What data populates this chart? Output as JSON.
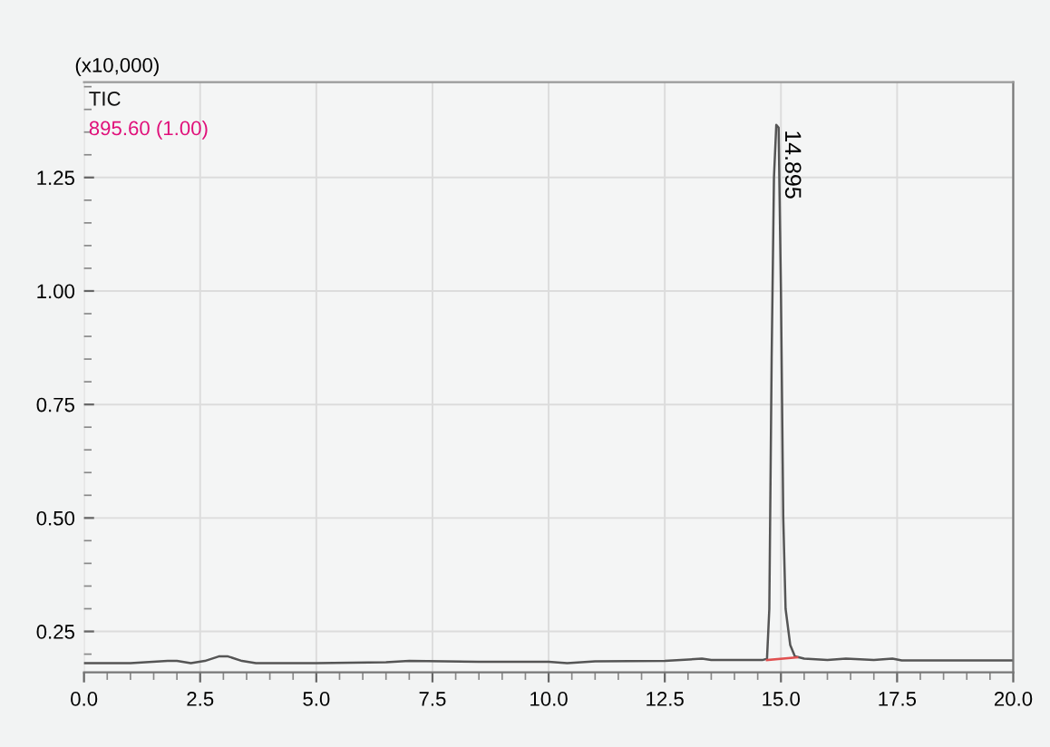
{
  "chart_data": {
    "type": "line",
    "ylabel": "(x10,000)",
    "annotations": [
      "TIC",
      "895.60 (1.00)",
      {
        "text": "14.895",
        "x": 14.895,
        "y": 1.366
      }
    ],
    "series": [
      {
        "color": "#555555",
        "x": [
          0.0,
          1.0,
          1.8,
          2.0,
          2.3,
          2.6,
          2.9,
          3.1,
          3.4,
          3.7,
          5.0,
          6.5,
          7.0,
          8.5,
          10.0,
          10.4,
          11.0,
          12.5,
          13.3,
          13.5,
          14.0,
          14.6,
          14.7,
          14.75,
          14.8,
          14.85,
          14.9,
          14.95,
          15.0,
          15.05,
          15.1,
          15.2,
          15.3,
          15.5,
          16.0,
          16.4,
          17.0,
          17.4,
          17.6,
          18.5,
          20.0
        ],
        "values": [
          0.18,
          0.18,
          0.185,
          0.185,
          0.18,
          0.185,
          0.195,
          0.195,
          0.185,
          0.18,
          0.18,
          0.182,
          0.185,
          0.183,
          0.183,
          0.18,
          0.184,
          0.185,
          0.19,
          0.187,
          0.187,
          0.187,
          0.19,
          0.3,
          0.85,
          1.25,
          1.366,
          1.36,
          1.0,
          0.5,
          0.3,
          0.22,
          0.195,
          0.19,
          0.187,
          0.19,
          0.187,
          0.19,
          0.186,
          0.186,
          0.186
        ]
      },
      {
        "color": "#e05050",
        "x": [
          14.7,
          15.35
        ],
        "values": [
          0.187,
          0.193
        ]
      }
    ],
    "xlim": [
      0.0,
      20.0
    ],
    "xticks": [
      {
        "value": 0,
        "label": "0.0"
      },
      2.5,
      {
        "value": 5,
        "label": "5.0"
      },
      7.5,
      {
        "value": 10,
        "label": "10.0"
      },
      12.5,
      {
        "value": 15,
        "label": "15.0"
      },
      17.5,
      {
        "value": 20,
        "label": "20.0"
      }
    ],
    "ylim": [
      0.16,
      1.46
    ],
    "yticks": [
      0.25,
      {
        "value": 0.5,
        "label": "0.50"
      },
      0.75,
      {
        "value": 1,
        "label": "1.00"
      },
      1.25
    ],
    "grid": true,
    "legend": false,
    "marker": "none",
    "line_style": "solid"
  }
}
